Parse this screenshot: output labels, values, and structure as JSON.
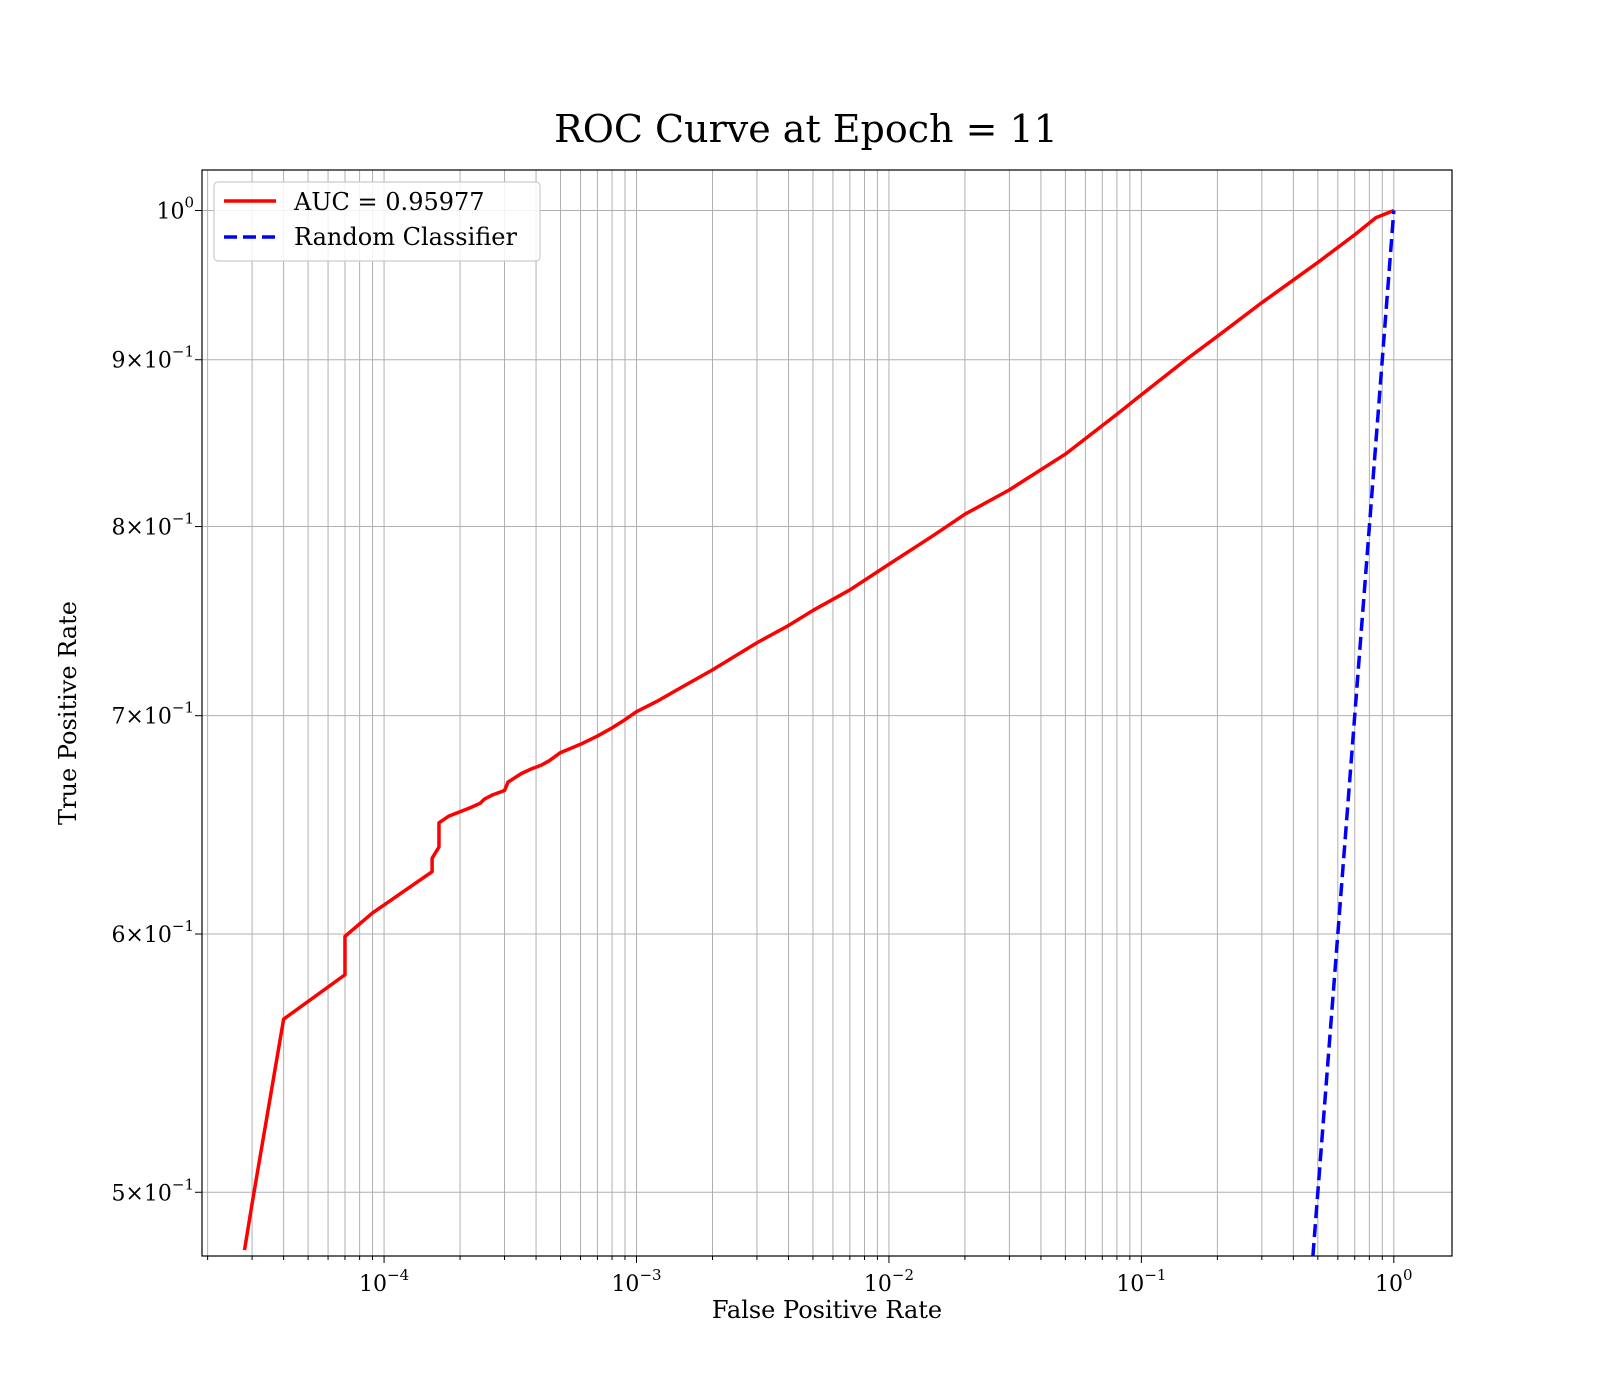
{
  "chart_data": {
    "type": "line",
    "title": "ROC Curve at Epoch = 11",
    "xlabel": "False Positive Rate",
    "ylabel": "True Positive Rate",
    "xscale": "log",
    "yscale": "log",
    "xlim": [
      1.9e-05,
      1.7
    ],
    "ylim": [
      0.478,
      1.029
    ],
    "grid": true,
    "legend_position": "top-left",
    "x_ticks": [
      {
        "value": 0.0001,
        "base": "10",
        "exp": "−4"
      },
      {
        "value": 0.001,
        "base": "10",
        "exp": "−3"
      },
      {
        "value": 0.01,
        "base": "10",
        "exp": "−2"
      },
      {
        "value": 0.1,
        "base": "10",
        "exp": "−1"
      },
      {
        "value": 1,
        "base": "10",
        "exp": "0"
      }
    ],
    "y_ticks": [
      {
        "value": 0.5,
        "mantissa": "5",
        "base": "10",
        "exp": "−1"
      },
      {
        "value": 0.6,
        "mantissa": "6",
        "base": "10",
        "exp": "−1"
      },
      {
        "value": 0.7,
        "mantissa": "7",
        "base": "10",
        "exp": "−1"
      },
      {
        "value": 0.8,
        "mantissa": "8",
        "base": "10",
        "exp": "−1"
      },
      {
        "value": 0.9,
        "mantissa": "9",
        "base": "10",
        "exp": "−1"
      },
      {
        "value": 1.0,
        "mantissa": "",
        "base": "10",
        "exp": "0"
      }
    ],
    "series": [
      {
        "name": "AUC = 0.95977",
        "color": "#ff0000",
        "style": "solid",
        "x": [
          2.8e-05,
          3e-05,
          4e-05,
          7e-05,
          7e-05,
          9e-05,
          0.000155,
          0.000155,
          0.000165,
          0.000165,
          0.00018,
          0.00022,
          0.00024,
          0.00025,
          0.00027,
          0.0003,
          0.00031,
          0.00032,
          0.00035,
          0.00038,
          0.00042,
          0.00045,
          0.0005,
          0.0006,
          0.0007,
          0.0008,
          0.0009,
          0.001,
          0.0012,
          0.0015,
          0.002,
          0.003,
          0.004,
          0.005,
          0.007,
          0.01,
          0.015,
          0.02,
          0.03,
          0.05,
          0.08,
          0.1,
          0.15,
          0.2,
          0.3,
          0.5,
          0.7,
          0.85,
          1.0
        ],
        "y": [
          0.48,
          0.496,
          0.565,
          0.583,
          0.599,
          0.609,
          0.627,
          0.633,
          0.638,
          0.649,
          0.652,
          0.656,
          0.658,
          0.66,
          0.662,
          0.664,
          0.668,
          0.669,
          0.672,
          0.674,
          0.676,
          0.678,
          0.682,
          0.686,
          0.69,
          0.694,
          0.698,
          0.702,
          0.707,
          0.714,
          0.723,
          0.737,
          0.746,
          0.754,
          0.765,
          0.779,
          0.795,
          0.807,
          0.821,
          0.842,
          0.866,
          0.878,
          0.9,
          0.915,
          0.937,
          0.964,
          0.983,
          0.995,
          1.0
        ]
      },
      {
        "name": "Random Classifier",
        "color": "#0000ff",
        "style": "dashed",
        "x": [
          0.478,
          1.0
        ],
        "y": [
          0.478,
          1.0
        ]
      }
    ]
  }
}
